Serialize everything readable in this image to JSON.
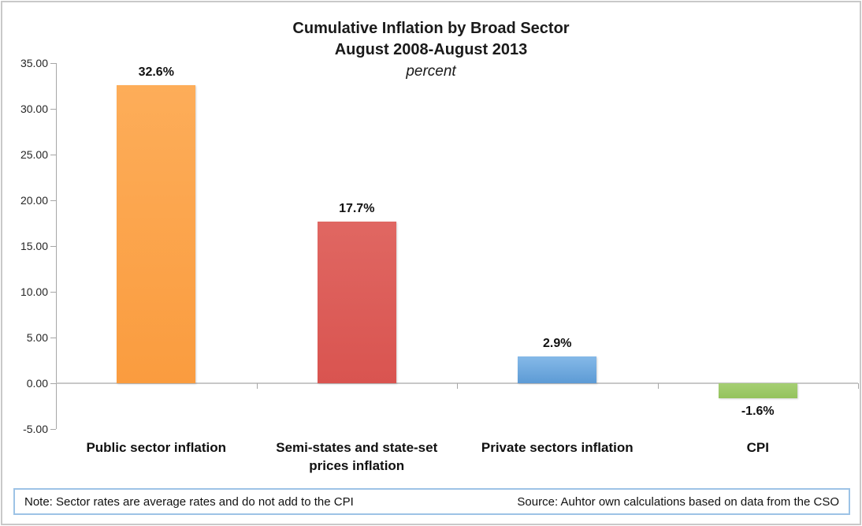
{
  "chart_data": {
    "type": "bar",
    "title": "Cumulative Inflation by Broad Sector",
    "subtitle": "August 2008-August 2013",
    "unit_label": "percent",
    "categories": [
      "Public sector inflation",
      "Semi-states and state-set prices inflation",
      "Private sectors inflation",
      "CPI"
    ],
    "values": [
      32.6,
      17.7,
      2.9,
      -1.6
    ],
    "value_labels": [
      "32.6%",
      "17.7%",
      "2.9%",
      "-1.6%"
    ],
    "bar_colors": [
      {
        "top": "#fdad59",
        "bottom": "#fa9c3f"
      },
      {
        "top": "#e06762",
        "bottom": "#d95450"
      },
      {
        "top": "#85b9e8",
        "bottom": "#5d9bd5"
      },
      {
        "top": "#a6cf74",
        "bottom": "#94c35c"
      }
    ],
    "ylim": [
      -5,
      35
    ],
    "yticks": [
      35,
      30,
      25,
      20,
      15,
      10,
      5,
      0,
      -5
    ],
    "ytick_labels": [
      "35.00",
      "30.00",
      "25.00",
      "20.00",
      "15.00",
      "10.00",
      "5.00",
      "0.00",
      "-5.00"
    ],
    "grid": "off",
    "legend": "none",
    "axis_color": "#a6a6a6",
    "zero_line_color": "#c8c8c8"
  },
  "footer": {
    "note": "Note: Sector rates are average rates and do not add to the CPI",
    "source": "Source: Auhtor own calculations based on data from the CSO",
    "border_color": "#9dc3e6"
  }
}
